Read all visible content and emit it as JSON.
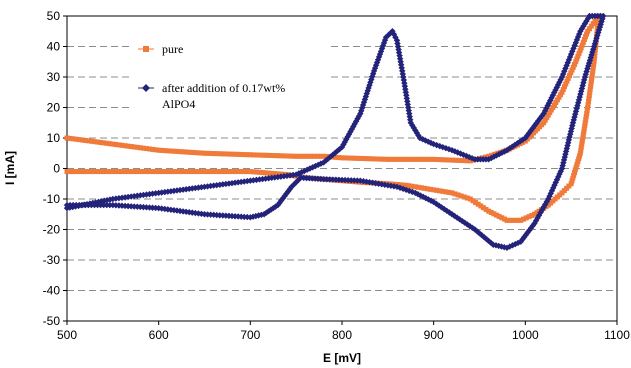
{
  "chart_data": {
    "type": "line",
    "title": "",
    "xlabel": "E [mV]",
    "ylabel": "I [mA]",
    "xlim": [
      500,
      1100
    ],
    "ylim": [
      -50,
      50
    ],
    "xticks": [
      500,
      600,
      700,
      800,
      900,
      1000,
      1100
    ],
    "yticks": [
      -50,
      -40,
      -30,
      -20,
      -10,
      0,
      10,
      20,
      30,
      40,
      50
    ],
    "grid": "horizontal dashed",
    "legend_position": "upper-left",
    "series": [
      {
        "name": "pure",
        "color": "#f07a3a",
        "marker": "square",
        "points": [
          [
            500,
            10
          ],
          [
            550,
            8
          ],
          [
            600,
            6
          ],
          [
            650,
            5
          ],
          [
            700,
            4.5
          ],
          [
            750,
            4
          ],
          [
            780,
            4
          ],
          [
            800,
            3.5
          ],
          [
            850,
            3
          ],
          [
            900,
            3
          ],
          [
            940,
            2.5
          ],
          [
            960,
            4
          ],
          [
            980,
            6
          ],
          [
            1000,
            9
          ],
          [
            1020,
            15
          ],
          [
            1040,
            25
          ],
          [
            1055,
            35
          ],
          [
            1068,
            45
          ],
          [
            1080,
            50
          ],
          [
            1080,
            50
          ],
          [
            1075,
            35
          ],
          [
            1068,
            20
          ],
          [
            1060,
            5
          ],
          [
            1050,
            -5
          ],
          [
            1040,
            -8
          ],
          [
            1025,
            -12
          ],
          [
            1010,
            -15
          ],
          [
            995,
            -17
          ],
          [
            980,
            -17
          ],
          [
            960,
            -14
          ],
          [
            940,
            -10
          ],
          [
            920,
            -8
          ],
          [
            900,
            -7
          ],
          [
            870,
            -5.5
          ],
          [
            850,
            -5
          ],
          [
            820,
            -4.5
          ],
          [
            800,
            -4
          ],
          [
            760,
            -3
          ],
          [
            740,
            -2
          ],
          [
            700,
            -1
          ],
          [
            650,
            -1
          ],
          [
            600,
            -1
          ],
          [
            550,
            -1
          ],
          [
            500,
            -1
          ]
        ]
      },
      {
        "name": "after addition of 0.17wt% AlPO4",
        "color": "#23237a",
        "marker": "diamond",
        "points": [
          [
            500,
            -13
          ],
          [
            550,
            -10
          ],
          [
            600,
            -8
          ],
          [
            650,
            -6
          ],
          [
            700,
            -4
          ],
          [
            750,
            -2
          ],
          [
            780,
            2
          ],
          [
            800,
            7
          ],
          [
            820,
            18
          ],
          [
            835,
            32
          ],
          [
            848,
            43
          ],
          [
            855,
            45
          ],
          [
            860,
            42
          ],
          [
            868,
            28
          ],
          [
            875,
            15
          ],
          [
            885,
            10
          ],
          [
            900,
            8
          ],
          [
            920,
            6
          ],
          [
            945,
            3
          ],
          [
            960,
            3
          ],
          [
            980,
            6
          ],
          [
            1000,
            10
          ],
          [
            1020,
            18
          ],
          [
            1040,
            30
          ],
          [
            1060,
            45
          ],
          [
            1070,
            50
          ],
          [
            1085,
            50
          ],
          [
            1075,
            40
          ],
          [
            1065,
            30
          ],
          [
            1052,
            15
          ],
          [
            1040,
            0
          ],
          [
            1025,
            -10
          ],
          [
            1010,
            -18
          ],
          [
            995,
            -24
          ],
          [
            980,
            -26
          ],
          [
            965,
            -25
          ],
          [
            945,
            -20
          ],
          [
            920,
            -15
          ],
          [
            900,
            -11
          ],
          [
            880,
            -8
          ],
          [
            860,
            -6
          ],
          [
            840,
            -5
          ],
          [
            820,
            -4
          ],
          [
            780,
            -3.5
          ],
          [
            755,
            -3
          ],
          [
            745,
            -6
          ],
          [
            730,
            -12
          ],
          [
            715,
            -15
          ],
          [
            700,
            -16
          ],
          [
            650,
            -15
          ],
          [
            600,
            -13
          ],
          [
            550,
            -12
          ],
          [
            500,
            -12
          ]
        ]
      }
    ],
    "legend": [
      {
        "label_lines": [
          "pure"
        ]
      },
      {
        "label_lines": [
          "after addition of 0.17wt%",
          "AlPO4"
        ]
      }
    ]
  }
}
